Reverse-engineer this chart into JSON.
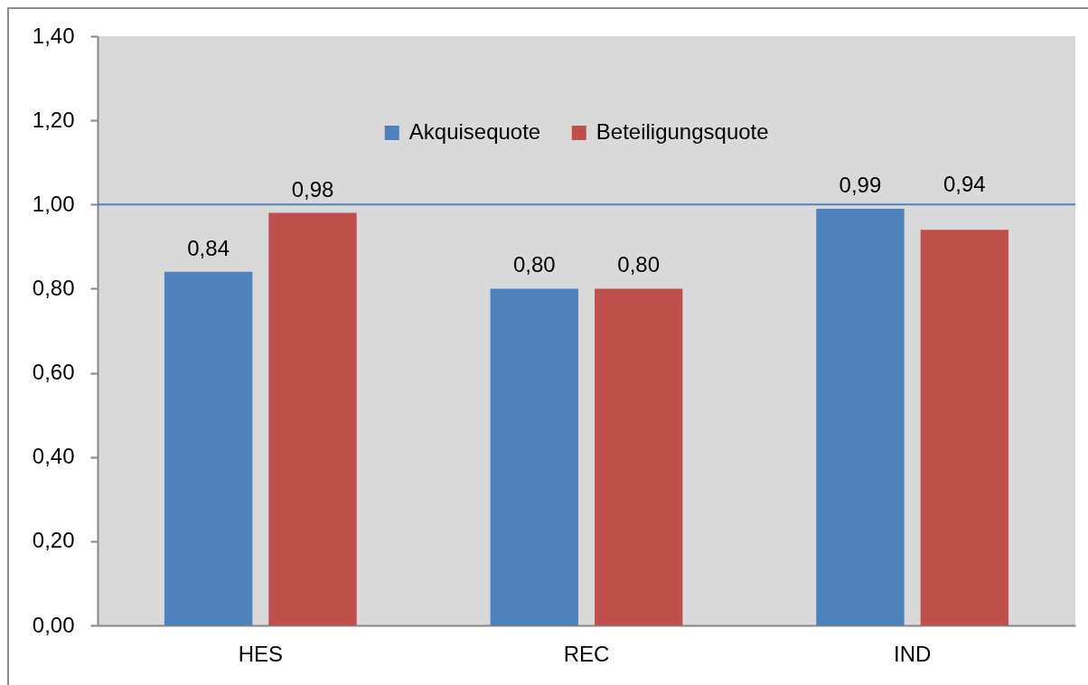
{
  "chart_data": {
    "type": "bar",
    "categories": [
      "HES",
      "REC",
      "IND"
    ],
    "series": [
      {
        "name": "Akquisequote",
        "color": "#4f81bd",
        "values": [
          0.84,
          0.8,
          0.99
        ],
        "value_labels": [
          "0,84",
          "0,80",
          "0,99"
        ]
      },
      {
        "name": "Beteiligungsquote",
        "color": "#c0504d",
        "values": [
          0.98,
          0.8,
          0.94
        ],
        "value_labels": [
          "0,98",
          "0,80",
          "0,94"
        ]
      }
    ],
    "ylim": [
      0,
      1.4
    ],
    "yticks": [
      {
        "value": 0,
        "label": "0,00"
      },
      {
        "value": 0.2,
        "label": "0,20"
      },
      {
        "value": 0.4,
        "label": "0,40"
      },
      {
        "value": 0.6,
        "label": "0,60"
      },
      {
        "value": 0.8,
        "label": "0,80"
      },
      {
        "value": 1.0,
        "label": "1,00"
      },
      {
        "value": 1.2,
        "label": "1,20"
      },
      {
        "value": 1.4,
        "label": "1,40"
      }
    ],
    "ref_lines": [
      {
        "axis": "y",
        "value": 1.0,
        "color": "#4f81bd"
      }
    ],
    "legend": "top"
  }
}
